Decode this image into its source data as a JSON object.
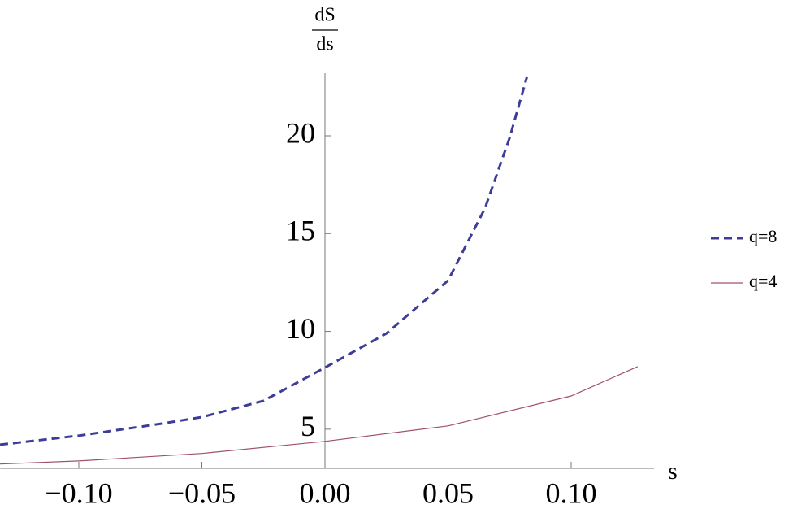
{
  "chart_data": {
    "type": "line",
    "ylabel_numerator": "dS",
    "ylabel_denominator": "ds",
    "xlabel": "s",
    "xlim": [
      -0.132,
      0.132
    ],
    "ylim": [
      3.0,
      23.2
    ],
    "xticks": [
      {
        "value": -0.1,
        "label": "−0.10"
      },
      {
        "value": -0.05,
        "label": "−0.05"
      },
      {
        "value": 0,
        "label": "0.00"
      },
      {
        "value": 0.05,
        "label": "0.05"
      },
      {
        "value": 0.1,
        "label": "0.10"
      }
    ],
    "yticks": [
      5,
      10,
      15,
      20
    ],
    "series": [
      {
        "name": "q=8",
        "color": "#3d3d99",
        "dash": true,
        "x": [
          -0.132,
          -0.1,
          -0.066,
          -0.05,
          -0.025,
          0,
          0.025,
          0.05,
          0.065,
          0.075,
          0.082
        ],
        "values": [
          4.21,
          4.67,
          5.29,
          5.62,
          6.45,
          8.15,
          9.9,
          12.6,
          16.3,
          19.9,
          23.0
        ]
      },
      {
        "name": "q=4",
        "color": "#a0506e",
        "dash": false,
        "x": [
          -0.132,
          -0.1,
          -0.05,
          0,
          0.05,
          0.1,
          0.127
        ],
        "values": [
          3.22,
          3.38,
          3.76,
          4.38,
          5.17,
          6.7,
          8.2
        ]
      }
    ]
  }
}
